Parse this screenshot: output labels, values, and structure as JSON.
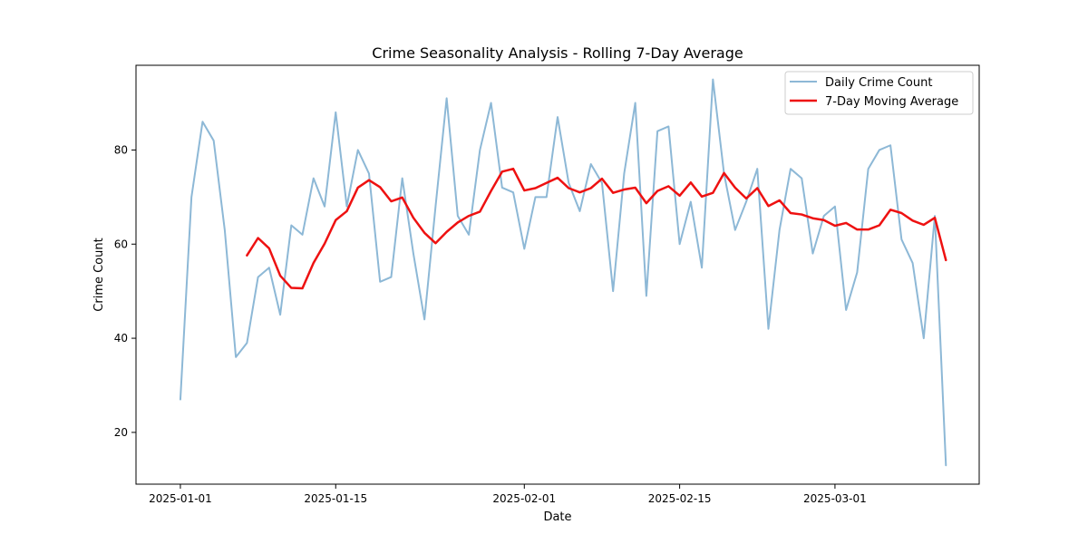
{
  "chart_data": {
    "type": "line",
    "title": "Crime Seasonality Analysis - Rolling 7-Day Average",
    "xlabel": "Date",
    "ylabel": "Crime Count",
    "x_start": "2025-01-01",
    "xlim": [
      "2024-12-28",
      "2025-03-14"
    ],
    "ylim": [
      9.0,
      98.0
    ],
    "x_ticks": [
      "2025-01-01",
      "2025-01-15",
      "2025-02-01",
      "2025-02-15",
      "2025-03-01"
    ],
    "y_ticks": [
      20,
      40,
      60,
      80
    ],
    "grid": false,
    "legend": {
      "placement": "top-right"
    },
    "series": [
      {
        "name": "Daily Crime Count",
        "color": "#8db8d6",
        "values": [
          27,
          70,
          86,
          82,
          63,
          36,
          39,
          53,
          55,
          45,
          64,
          62,
          74,
          68,
          88,
          68,
          80,
          75,
          52,
          53,
          74,
          58,
          44,
          68,
          91,
          66,
          62,
          80,
          90,
          72,
          71,
          59,
          70,
          70,
          87,
          73,
          67,
          77,
          73,
          50,
          75,
          90,
          49,
          84,
          85,
          60,
          69,
          55,
          95,
          75,
          63,
          69,
          76,
          42,
          63,
          76,
          74,
          58,
          66,
          68,
          46,
          54,
          76,
          80,
          81,
          61,
          56,
          40,
          66,
          13
        ]
      },
      {
        "name": "7-Day Moving Average",
        "color": "#ee1111",
        "values": [
          null,
          null,
          null,
          null,
          null,
          null,
          57.6,
          61.3,
          59.1,
          53.3,
          50.7,
          50.6,
          56.0,
          60.1,
          65.1,
          67.0,
          72.0,
          73.6,
          72.1,
          69.1,
          69.9,
          65.6,
          62.4,
          60.2,
          62.6,
          64.6,
          66.0,
          66.9,
          71.3,
          75.4,
          76.0,
          71.4,
          71.9,
          73.0,
          74.1,
          71.9,
          71.0,
          71.9,
          73.9,
          70.9,
          71.6,
          72.0,
          68.7,
          71.3,
          72.3,
          70.3,
          73.1,
          70.1,
          70.9,
          75.1,
          72.0,
          69.7,
          71.9,
          68.1,
          69.3,
          66.6,
          66.3,
          65.5,
          65.1,
          63.9,
          64.5,
          63.1,
          63.1,
          64.0,
          67.3,
          66.6,
          65.0,
          64.1,
          65.6,
          56.6
        ]
      }
    ]
  }
}
